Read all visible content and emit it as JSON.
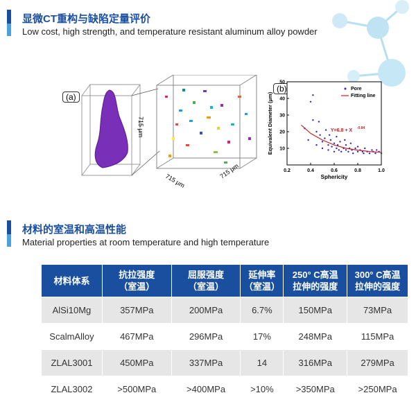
{
  "section1": {
    "title_cn": "显微CT重构与缺陷定量评价",
    "title_en": "Low cost, high strength, and temperature resistant aluminum alloy powder"
  },
  "figure": {
    "label_a": "(a)",
    "label_b": "(b)",
    "cube_dim_1": "715 μm",
    "cube_dim_2": "715 μm",
    "cube_dim_3": "715 μm"
  },
  "chart_data": {
    "type": "scatter",
    "xlabel": "Sphericity",
    "ylabel": "Equivalent Diameter (μm)",
    "xlim": [
      0.2,
      1.0
    ],
    "ylim": [
      0,
      50
    ],
    "xticks": [
      "0.2",
      "0.4",
      "0.6",
      "0.8",
      "1.0"
    ],
    "yticks": [
      "10",
      "20",
      "30",
      "40",
      "50"
    ],
    "legend": [
      "Pore",
      "Fitting line"
    ],
    "legend_position": "top-right",
    "annotation": "Y=6.8 + X",
    "annotation_exp": "-0.84",
    "series": [
      {
        "name": "Pore",
        "points": [
          [
            0.35,
            22
          ],
          [
            0.38,
            15
          ],
          [
            0.4,
            38
          ],
          [
            0.42,
            27
          ],
          [
            0.45,
            20
          ],
          [
            0.45,
            12
          ],
          [
            0.48,
            18
          ],
          [
            0.5,
            14
          ],
          [
            0.5,
            10
          ],
          [
            0.52,
            16
          ],
          [
            0.53,
            21
          ],
          [
            0.55,
            12
          ],
          [
            0.55,
            9
          ],
          [
            0.57,
            15
          ],
          [
            0.58,
            11
          ],
          [
            0.6,
            13
          ],
          [
            0.6,
            8
          ],
          [
            0.62,
            10
          ],
          [
            0.63,
            12
          ],
          [
            0.64,
            9
          ],
          [
            0.65,
            14
          ],
          [
            0.66,
            8
          ],
          [
            0.68,
            10
          ],
          [
            0.7,
            9
          ],
          [
            0.7,
            12
          ],
          [
            0.72,
            8
          ],
          [
            0.73,
            10
          ],
          [
            0.75,
            9
          ],
          [
            0.76,
            7
          ],
          [
            0.78,
            10
          ],
          [
            0.8,
            8
          ],
          [
            0.8,
            11
          ],
          [
            0.82,
            9
          ],
          [
            0.84,
            8
          ],
          [
            0.85,
            7
          ],
          [
            0.86,
            10
          ],
          [
            0.88,
            8
          ],
          [
            0.9,
            7
          ],
          [
            0.92,
            9
          ],
          [
            0.93,
            8
          ],
          [
            0.95,
            7
          ],
          [
            0.96,
            9
          ],
          [
            0.98,
            8
          ],
          [
            1.0,
            7
          ],
          [
            0.42,
            42
          ],
          [
            0.47,
            26
          ],
          [
            0.56,
            18
          ],
          [
            0.62,
            17
          ],
          [
            0.69,
            15
          ],
          [
            0.74,
            13
          ]
        ]
      },
      {
        "name": "Fitting line",
        "points": [
          [
            0.32,
            24
          ],
          [
            0.4,
            19
          ],
          [
            0.5,
            15
          ],
          [
            0.6,
            12
          ],
          [
            0.7,
            10
          ],
          [
            0.8,
            8.9
          ],
          [
            0.9,
            8.1
          ],
          [
            1.0,
            7.6
          ]
        ]
      }
    ]
  },
  "section2": {
    "title_cn": "材料的室温和高温性能",
    "title_en": "Material properties at room temperature and high temperature"
  },
  "table": {
    "headers": [
      "材料体系",
      "抗拉强度\n（室温）",
      "屈服强度\n（室温）",
      "延伸率\n（室温）",
      "250° C高温\n拉伸的强度",
      "300° C高温\n拉伸的强度"
    ],
    "rows": [
      [
        "AlSi10Mg",
        "357MPa",
        "200MPa",
        "6.7%",
        "150MPa",
        "73MPa"
      ],
      [
        "ScalmAlloy",
        "467MPa",
        "296MPa",
        "17%",
        "248MPa",
        "115MPa"
      ],
      [
        "ZLAL3001",
        "450MPa",
        "337MPa",
        "14",
        "316MPa",
        "279MPa"
      ],
      [
        "ZLAL3002",
        ">500MPa",
        ">400MPa",
        ">10%",
        ">350MPa",
        ">250MPa"
      ]
    ]
  }
}
